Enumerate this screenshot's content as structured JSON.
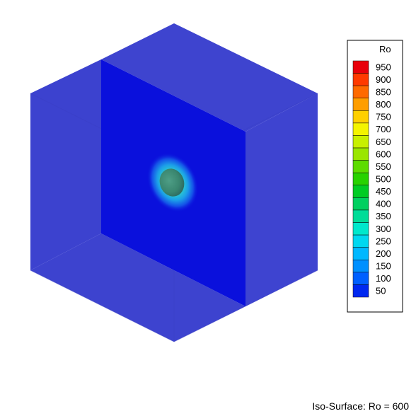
{
  "legend": {
    "title": "Ro",
    "labels": [
      "950",
      "900",
      "850",
      "800",
      "750",
      "700",
      "650",
      "600",
      "550",
      "500",
      "450",
      "400",
      "350",
      "300",
      "250",
      "200",
      "150",
      "100",
      "50"
    ],
    "colors": [
      "#e8000b",
      "#ff3a00",
      "#ff6a00",
      "#ff9e00",
      "#ffd000",
      "#f4f400",
      "#c8f000",
      "#9ae600",
      "#5ddc00",
      "#28d200",
      "#00cc24",
      "#00d060",
      "#00dc98",
      "#00e8cc",
      "#00d8f0",
      "#00b8ff",
      "#0090ff",
      "#0060ff",
      "#0028f0"
    ]
  },
  "caption": "Iso-Surface: Ro = 600",
  "colors": {
    "box_front": "#3d43d0",
    "box_top": "#3e44cf",
    "slice": "#0a10dc",
    "sphere": "#3d8f78"
  }
}
